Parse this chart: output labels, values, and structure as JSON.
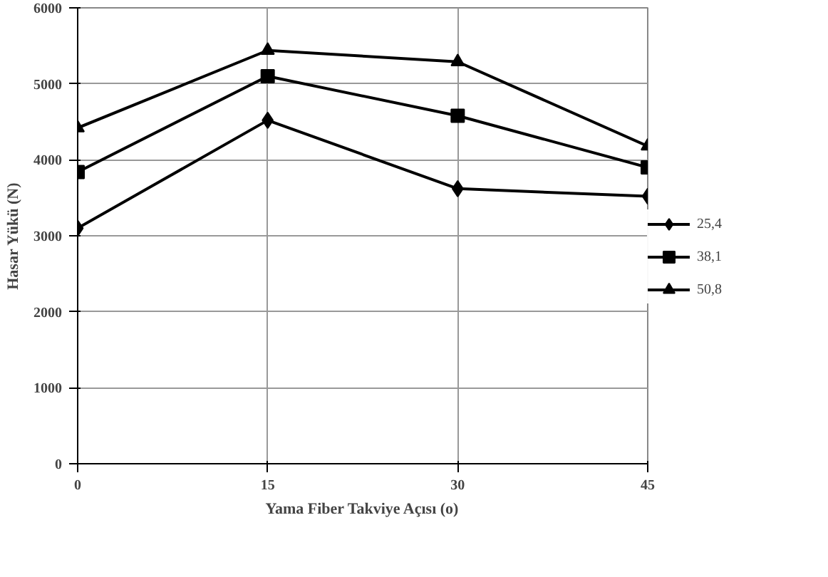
{
  "chart_data": {
    "type": "line",
    "xlabel": "Yama Fiber Takviye Açısı (o)",
    "ylabel": "Hasar Yükü (N)",
    "x": [
      0,
      15,
      30,
      45
    ],
    "xlim": [
      0,
      45
    ],
    "xticks": [
      0,
      15,
      30,
      45
    ],
    "ylim": [
      0,
      6000
    ],
    "yticks": [
      0,
      1000,
      2000,
      3000,
      4000,
      5000,
      6000
    ],
    "grid": true,
    "legend": "right",
    "line_style": "solid",
    "series": [
      {
        "name": "25,4",
        "color": "#000000",
        "marker": "diamond",
        "values": [
          3100,
          4520,
          3620,
          3520
        ]
      },
      {
        "name": "38,1",
        "color": "#000000",
        "marker": "square",
        "values": [
          3840,
          5100,
          4580,
          3900
        ]
      },
      {
        "name": "50,8",
        "color": "#000000",
        "marker": "triangle",
        "values": [
          4420,
          5440,
          5290,
          4180
        ]
      }
    ]
  }
}
